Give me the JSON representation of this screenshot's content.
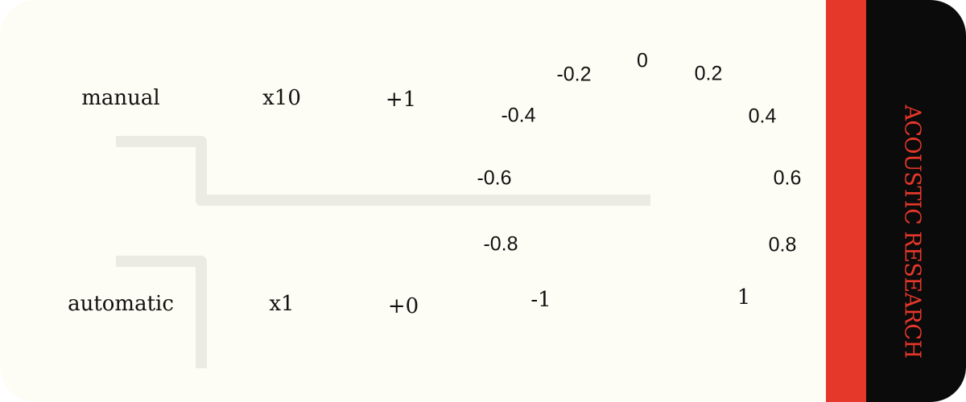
{
  "brand": {
    "name": "ACOUSTIC RESEARCH",
    "colors": {
      "accent_red": "#e5372a",
      "black": "#0b0b0b",
      "face": "#fdfdf5",
      "track": "#ebebe4"
    }
  },
  "mode": {
    "manual_label": "manual",
    "automatic_label": "automatic"
  },
  "multiplier": {
    "high_label": "x10",
    "low_label": "x1"
  },
  "offset": {
    "high_label": "+1",
    "low_label": "+0"
  },
  "dial": {
    "labels": [
      "-1",
      "-0.8",
      "-0.6",
      "-0.4",
      "-0.2",
      "0",
      "0.2",
      "0.4",
      "0.6",
      "0.8",
      "1"
    ]
  }
}
